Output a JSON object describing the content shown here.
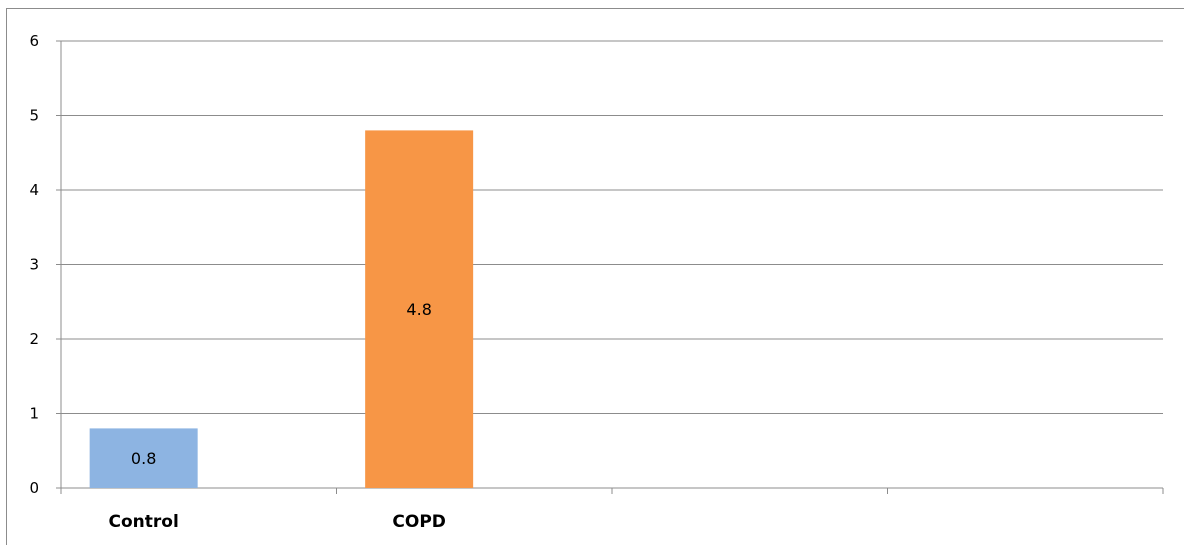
{
  "chart_data": {
    "type": "bar",
    "title": "",
    "xlabel": "",
    "ylabel": "",
    "categories": [
      "Control",
      "COPD",
      "",
      ""
    ],
    "values": [
      0.8,
      4.8,
      null,
      null
    ],
    "data_labels": [
      "0.8",
      "4.8",
      "",
      ""
    ],
    "ylim": [
      0,
      6
    ],
    "yticks": [
      0,
      1,
      2,
      3,
      4,
      5,
      6
    ],
    "grid": true,
    "legend": "none",
    "bar_colors": [
      "#8db4e2",
      "#f79646"
    ],
    "gridline_color": "#8c8c8c"
  }
}
